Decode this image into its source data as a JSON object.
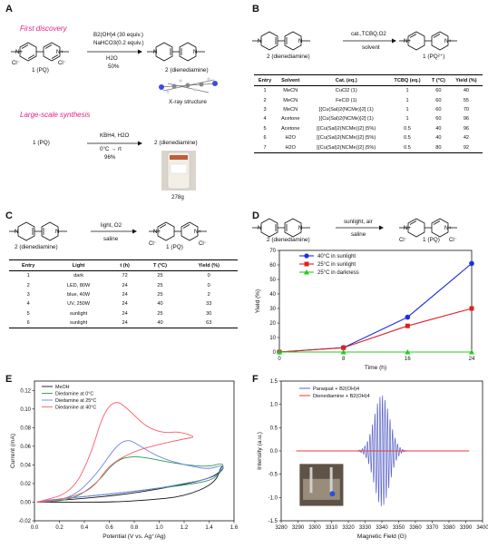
{
  "panels": {
    "a": "A",
    "b": "B",
    "c": "C",
    "d": "D",
    "e": "E",
    "f": "F"
  },
  "colors": {
    "magenta": "#e0208a",
    "blue": "#1f2fe0",
    "red": "#e02020",
    "green": "#22cc22",
    "black": "#111111"
  },
  "a": {
    "first_title": "First discovery",
    "r1": "B2(OH)4 (30 equiv.)",
    "r2": "NaHCO3(0.2 equiv.)",
    "r3": "H2O",
    "r4": "50%",
    "pq_label": "1 (PQ)",
    "prod_label": "2 (dienediamine)",
    "xray": "X-ray structure",
    "large_title": "Large-scale synthesis",
    "l_reagent": "KBH4, H2O",
    "l_cond": "0°C → rt",
    "l_yield": "96%",
    "l_start": "1 (PQ)",
    "l_prod": "2 (dienediamine)",
    "photo_mass": "278g",
    "cl": "Cl⁻"
  },
  "b": {
    "reagent": "cat.,TCBQ,O2",
    "solvent": "solvent",
    "start": "2 (dienediamine)",
    "prod": "1 (PQ²⁺)",
    "headers": [
      "Entry",
      "Solvent",
      "Cat. (eq.)",
      "TCBQ (eq.)",
      "T (°C)",
      "Yield (%)"
    ],
    "rows": [
      [
        "1",
        "MeCN",
        "CuCl2 (1)",
        "1",
        "60",
        "40"
      ],
      [
        "2",
        "MeCN",
        "FeCl3 (1)",
        "1",
        "60",
        "55"
      ],
      [
        "3",
        "MeCN",
        "[{Cu(Sal)2(NCMe)}2] (1)",
        "1",
        "60",
        "70"
      ],
      [
        "4",
        "Acetone",
        "[{Cu(Sal)2(NCMe)}2] (1)",
        "1",
        "60",
        "96"
      ],
      [
        "5",
        "Acetone",
        "[{Cu(Sal)2(NCMe)}2] (5%)",
        "0.5",
        "40",
        "96"
      ],
      [
        "6",
        "H2O",
        "[{Cu(Sal)2(NCMe)}2] (5%)",
        "0.5",
        "40",
        "42"
      ],
      [
        "7",
        "H2O",
        "[{Cu(Sal)2(NCMe)}2] (5%)",
        "0.5",
        "80",
        "92"
      ]
    ]
  },
  "c": {
    "reagent": "light, O2",
    "solvent": "saline",
    "start": "2 (dienediamine)",
    "prod": "1 (PQ)",
    "cl": "Cl⁻",
    "headers": [
      "Entry",
      "Light",
      "t (h)",
      "T (°C)",
      "Yield (%)"
    ],
    "rows": [
      [
        "1",
        "dark",
        "72",
        "25",
        "0"
      ],
      [
        "2",
        "LED, 80W",
        "24",
        "25",
        "0"
      ],
      [
        "3",
        "blue, 40W",
        "24",
        "25",
        "2"
      ],
      [
        "4",
        "UV, 250W",
        "24",
        "40",
        "33"
      ],
      [
        "5",
        "sunlight",
        "24",
        "25",
        "30"
      ],
      [
        "6",
        "sunlight",
        "24",
        "40",
        "63"
      ]
    ]
  },
  "d": {
    "reagent": "sunlight, air",
    "solvent": "saline",
    "start": "2 (dienediamine)",
    "prod": "1 (PQ)",
    "cl": "Cl⁻"
  },
  "e": {
    "reference": "Ag⁺/Ag"
  },
  "f": {},
  "chart_data": [
    {
      "type": "line",
      "panel": "D",
      "xlabel": "Time (h)",
      "ylabel": "Yield (%)",
      "x": [
        0,
        8,
        16,
        24
      ],
      "xticks": [
        "0",
        "8",
        "16",
        "24"
      ],
      "yticks": [
        "0",
        "10",
        "20",
        "30",
        "40",
        "50",
        "60",
        "70"
      ],
      "xlim": [
        0,
        24
      ],
      "ylim": [
        0,
        70
      ],
      "legend_position": "top-left",
      "series": [
        {
          "name": "40°C  in sunlight",
          "values": [
            0,
            3,
            24,
            61
          ],
          "color": "#1f2fe0",
          "marker": "circle"
        },
        {
          "name": "25°C  in sunlight",
          "values": [
            0,
            3,
            18,
            30
          ],
          "color": "#e02020",
          "marker": "square"
        },
        {
          "name": "25°C  in darkness",
          "values": [
            0,
            0,
            0,
            0
          ],
          "color": "#22cc22",
          "marker": "triangle"
        }
      ]
    },
    {
      "type": "line",
      "panel": "E",
      "xlabel": "Potential (V vs. Ag⁺/Ag)",
      "ylabel": "Current (mA)",
      "xticks": [
        "0.0",
        "0.2",
        "0.4",
        "0.6",
        "0.8",
        "1.0",
        "1.2",
        "1.4",
        "1.6"
      ],
      "yticks": [
        "-0.02",
        "0.00",
        "0.02",
        "0.04",
        "0.06",
        "0.08",
        "0.10",
        "0.12"
      ],
      "xlim": [
        0,
        1.6
      ],
      "ylim": [
        -0.02,
        0.13
      ],
      "legend_position": "top-left",
      "series": [
        {
          "name": "MeOH",
          "color": "#111111",
          "x": [
            0.02,
            0.3,
            0.6,
            0.9,
            1.2,
            1.45,
            1.5,
            1.52,
            1.45,
            1.3,
            1.0,
            0.7,
            0.4,
            0.1,
            0.02
          ],
          "y": [
            0.0,
            0.0,
            0.0,
            0.002,
            0.006,
            0.02,
            0.04,
            0.036,
            0.028,
            0.022,
            0.014,
            0.008,
            0.004,
            0.001,
            0.0
          ]
        },
        {
          "name": "Diedamine at 0°C",
          "color": "#2a9a4a",
          "x": [
            0.02,
            0.3,
            0.5,
            0.65,
            0.8,
            1.0,
            1.2,
            1.4,
            1.5,
            1.52,
            1.45,
            1.3,
            1.0,
            0.7,
            0.4,
            0.1,
            0.02
          ],
          "y": [
            0.0,
            0.002,
            0.02,
            0.045,
            0.05,
            0.045,
            0.04,
            0.038,
            0.042,
            0.038,
            0.025,
            0.02,
            0.015,
            0.01,
            0.006,
            0.002,
            0.0
          ]
        },
        {
          "name": "Diedamine at 25°C",
          "color": "#6f7fe8",
          "x": [
            0.02,
            0.3,
            0.5,
            0.65,
            0.75,
            0.85,
            1.0,
            1.2,
            1.4,
            1.5,
            1.52,
            1.4,
            1.2,
            1.0,
            0.7,
            0.4,
            0.1,
            0.02
          ],
          "y": [
            0.0,
            0.004,
            0.03,
            0.06,
            0.068,
            0.06,
            0.048,
            0.04,
            0.035,
            0.04,
            0.036,
            0.025,
            0.02,
            0.015,
            0.01,
            0.006,
            0.002,
            0.0
          ]
        },
        {
          "name": "Diedamine at 40°C",
          "color": "#ff5a6a",
          "x": [
            0.02,
            0.3,
            0.45,
            0.55,
            0.65,
            0.75,
            0.9,
            1.05,
            1.15,
            1.3,
            1.2,
            1.0,
            0.8,
            0.6,
            0.5,
            0.4,
            0.2,
            0.02
          ],
          "y": [
            0.0,
            0.01,
            0.05,
            0.095,
            0.11,
            0.1,
            0.08,
            0.074,
            0.076,
            0.07,
            0.068,
            0.062,
            0.055,
            0.04,
            0.02,
            0.01,
            0.002,
            0.0
          ]
        }
      ]
    },
    {
      "type": "line",
      "panel": "F",
      "xlabel": "Magnetic Field (G)",
      "ylabel": "Intensity (a.u.)",
      "xticks": [
        "3280",
        "3290",
        "3300",
        "3310",
        "3320",
        "3330",
        "3340",
        "3350",
        "3360",
        "3370",
        "3380",
        "3390",
        "3400"
      ],
      "yticks": [
        "-1.5",
        "-1.0",
        "-0.5",
        "0.0",
        "0.5",
        "1.0",
        "1.5"
      ],
      "xlim": [
        3280,
        3400
      ],
      "ylim": [
        -1.5,
        1.5
      ],
      "legend_position": "top-left",
      "series": [
        {
          "name": "Paraquat + B2(OH)4",
          "color": "#5a64c8",
          "center": 3340,
          "amplitude": 1.2,
          "width": 6.5,
          "period": 1.5,
          "range": [
            3320,
            3362
          ]
        },
        {
          "name": "Dienediamine + B2(OH)4",
          "color": "#e83a3a",
          "value": 0,
          "range": [
            3289,
            3392
          ]
        }
      ]
    }
  ]
}
